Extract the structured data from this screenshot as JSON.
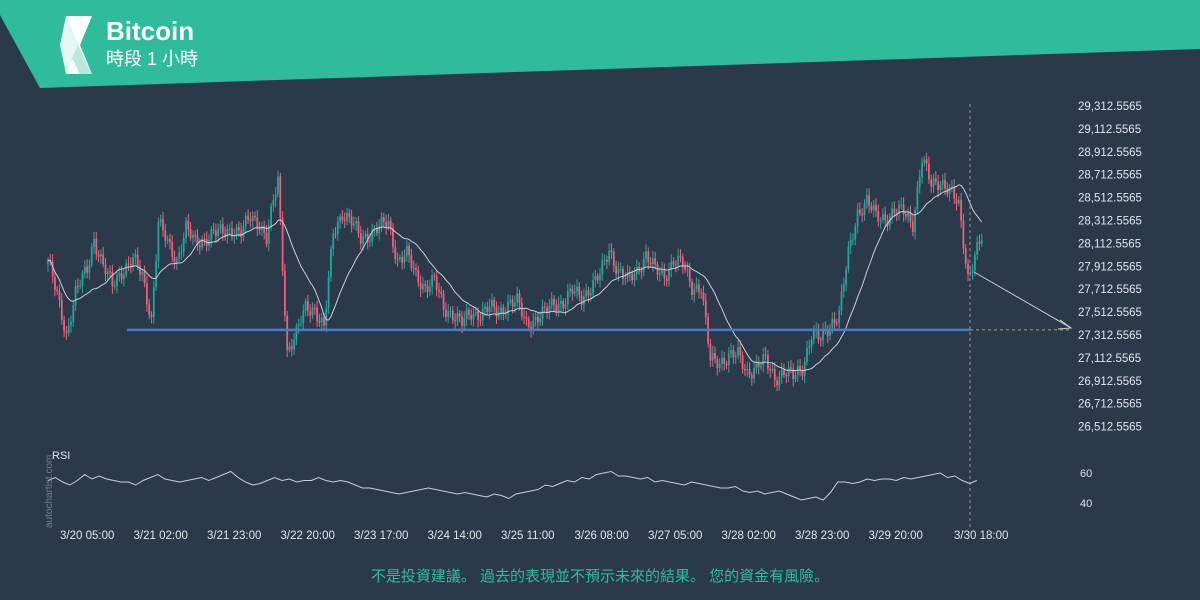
{
  "header": {
    "title": "Bitcoin",
    "subtitle": "時段 1 小時"
  },
  "watermark": "autochartist.com",
  "disclaimer": "不是投資建議。 過去的表現並不預示未來的結果。 您的資金有風險。",
  "colors": {
    "banner": "#2ebc9c",
    "background": "#2a3a4b",
    "up_candle": "#26a69a",
    "down_candle": "#ef5f7a",
    "support_line": "#4a7bc0",
    "moving_average": "#c8d0d8",
    "rsi_line": "#c8d0d8"
  },
  "chart_data": [
    {
      "type": "candlestick",
      "title": "Bitcoin",
      "subtitle": "時段 1 小時",
      "ylim": [
        26412,
        29412
      ],
      "y_ticks": [
        "29,312.5565",
        "29,112.5565",
        "28,912.5565",
        "28,712.5565",
        "28,512.5565",
        "28,312.5565",
        "28,112.5565",
        "27,912.5565",
        "27,712.5565",
        "27,512.5565",
        "27,312.5565",
        "27,112.5565",
        "26,912.5565",
        "26,712.5565",
        "26,512.5565"
      ],
      "x_ticks": [
        "3/20 05:00",
        "3/21 02:00",
        "3/21 23:00",
        "3/22 20:00",
        "3/23 17:00",
        "3/24 14:00",
        "3/25 11:00",
        "3/26 08:00",
        "3/27 05:00",
        "3/28 02:00",
        "3/28 23:00",
        "3/29 20:00",
        "3/30 18:00"
      ],
      "support_level": 27295,
      "current_time_label": "3/30 18:00",
      "projected_target": 27312.5565,
      "price_path": [
        [
          0,
          27950
        ],
        [
          4,
          27600
        ],
        [
          8,
          27250
        ],
        [
          12,
          27650
        ],
        [
          17,
          27850
        ],
        [
          20,
          28150
        ],
        [
          24,
          27900
        ],
        [
          28,
          27700
        ],
        [
          32,
          27850
        ],
        [
          37,
          27950
        ],
        [
          41,
          27800
        ],
        [
          45,
          27400
        ],
        [
          48,
          28300
        ],
        [
          52,
          28100
        ],
        [
          56,
          27950
        ],
        [
          60,
          28250
        ],
        [
          64,
          28100
        ],
        [
          68,
          28150
        ],
        [
          72,
          28200
        ],
        [
          76,
          28200
        ],
        [
          80,
          28250
        ],
        [
          84,
          28200
        ],
        [
          88,
          28350
        ],
        [
          92,
          28300
        ],
        [
          95,
          28150
        ],
        [
          100,
          28700
        ],
        [
          104,
          27100
        ],
        [
          108,
          27250
        ],
        [
          112,
          27500
        ],
        [
          116,
          27500
        ],
        [
          120,
          27300
        ],
        [
          124,
          28200
        ],
        [
          128,
          28400
        ],
        [
          132,
          28300
        ],
        [
          136,
          28150
        ],
        [
          140,
          28200
        ],
        [
          144,
          28250
        ],
        [
          148,
          28300
        ],
        [
          152,
          27950
        ],
        [
          156,
          28000
        ],
        [
          160,
          27800
        ],
        [
          164,
          27700
        ],
        [
          168,
          27750
        ],
        [
          172,
          27500
        ],
        [
          176,
          27450
        ],
        [
          180,
          27350
        ],
        [
          184,
          27450
        ],
        [
          188,
          27450
        ],
        [
          192,
          27500
        ],
        [
          196,
          27450
        ],
        [
          200,
          27550
        ],
        [
          204,
          27550
        ],
        [
          208,
          27350
        ],
        [
          212,
          27400
        ],
        [
          216,
          27450
        ],
        [
          220,
          27550
        ],
        [
          224,
          27550
        ],
        [
          228,
          27650
        ],
        [
          232,
          27600
        ],
        [
          236,
          27700
        ],
        [
          240,
          27800
        ],
        [
          244,
          28050
        ],
        [
          248,
          27850
        ],
        [
          252,
          27750
        ],
        [
          256,
          27850
        ],
        [
          260,
          28000
        ],
        [
          264,
          27850
        ],
        [
          268,
          27800
        ],
        [
          272,
          27950
        ],
        [
          276,
          27900
        ],
        [
          280,
          27700
        ],
        [
          284,
          27700
        ],
        [
          288,
          27000
        ],
        [
          292,
          27000
        ],
        [
          296,
          27050
        ],
        [
          300,
          27050
        ],
        [
          304,
          26900
        ],
        [
          308,
          26950
        ],
        [
          312,
          27000
        ],
        [
          316,
          26850
        ],
        [
          320,
          26900
        ],
        [
          324,
          26850
        ],
        [
          328,
          26950
        ],
        [
          332,
          27250
        ],
        [
          336,
          27200
        ],
        [
          340,
          27350
        ],
        [
          344,
          27450
        ],
        [
          348,
          28000
        ],
        [
          352,
          28400
        ],
        [
          356,
          28500
        ],
        [
          360,
          28350
        ],
        [
          364,
          28350
        ],
        [
          368,
          28400
        ],
        [
          372,
          28400
        ],
        [
          376,
          28300
        ],
        [
          380,
          28900
        ],
        [
          384,
          28650
        ],
        [
          388,
          28700
        ],
        [
          392,
          28600
        ],
        [
          396,
          28450
        ],
        [
          400,
          27800
        ],
        [
          404,
          28050
        ],
        [
          406,
          28150
        ]
      ]
    },
    {
      "type": "line",
      "title": "RSI",
      "ylim": [
        30,
        70
      ],
      "y_ticks": [
        60,
        40
      ],
      "values": [
        55,
        57,
        54,
        52,
        55,
        59,
        56,
        58,
        56,
        55,
        54,
        54,
        52,
        55,
        57,
        59,
        56,
        55,
        54,
        55,
        56,
        57,
        55,
        57,
        59,
        61,
        57,
        54,
        52,
        53,
        55,
        57,
        55,
        56,
        54,
        55,
        55,
        57,
        55,
        54,
        55,
        54,
        52,
        50,
        50,
        49,
        48,
        47,
        46,
        47,
        48,
        49,
        50,
        49,
        48,
        47,
        46,
        47,
        46,
        45,
        44,
        46,
        45,
        43,
        46,
        47,
        48,
        49,
        52,
        51,
        53,
        55,
        54,
        57,
        56,
        59,
        60,
        61,
        58,
        58,
        57,
        56,
        57,
        54,
        55,
        54,
        53,
        52,
        54,
        53,
        52,
        51,
        50,
        50,
        51,
        48,
        47,
        48,
        46,
        47,
        48,
        46,
        44,
        42,
        43,
        44,
        42,
        47,
        54,
        54,
        53,
        54,
        56,
        55,
        56,
        56,
        55,
        57,
        56,
        57,
        58,
        59,
        60,
        57,
        58,
        55,
        53,
        55
      ]
    }
  ]
}
